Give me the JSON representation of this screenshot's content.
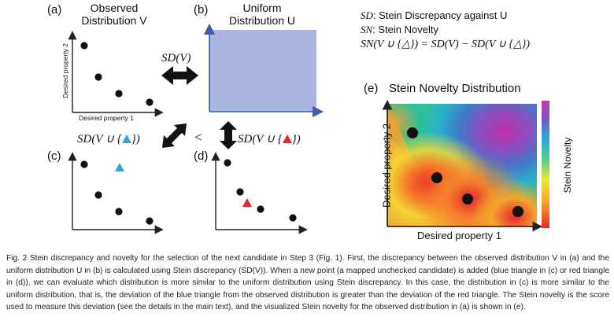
{
  "panels": {
    "a": {
      "letter": "(a)",
      "title_line1": "Observed",
      "title_line2": "Distribution V",
      "xlabel": "Desired property 1",
      "ylabel": "Desired property 2"
    },
    "b": {
      "letter": "(b)",
      "title_line1": "Uniform",
      "title_line2": "Distribution U"
    },
    "c": {
      "letter": "(c)"
    },
    "d": {
      "letter": "(d)"
    },
    "e": {
      "letter": "(e)",
      "title": "Stein Novelty Distribution",
      "xlabel": "Desired property 1",
      "ylabel": "Desired property 2",
      "colorbar_label": "Stein Novelty"
    }
  },
  "formulas": {
    "sd_v": "SD(V)",
    "sd_blue": "SD(V ∪ {",
    "sd_red": "SD(V ∪ {",
    "close_brace": "})",
    "less_than": "<"
  },
  "legend": {
    "line1_sym": "SD",
    "line1_text": ": Stein Discrepancy against U",
    "line2_sym": "SN",
    "line2_text": ": Stein Novelty",
    "line3": "SN(V ∪ {△}) = SD(V) − SD(V ∪ {△})"
  },
  "colors": {
    "uniform_fill": "#a9b5de",
    "blue_triangle": "#29a9e0",
    "red_triangle": "#e8262b"
  },
  "caption": "Fig. 2   Stein discrepancy and novelty for the selection of the next candidate in Step 3 (Fig. 1). First, the discrepancy between the observed distribution V in (a) and the uniform distribution U in (b) is calculated using Stein discrepancy (SD(V)). When a new point (a mapped unchecked candidate) is added (blue triangle in (c) or red triangle in (d)), we can evaluate which distribution is more similar to the uniform distribution using Stein discrepancy. In this case, the distribution in (c) is more similar to the uniform distribution, that is, the deviation of the blue triangle from the observed distribution is greater than the deviation of the red triangle. The Stein novelty is the score used to measure this deviation (see the details in the main text), and the visualized Stein novelty for the observed distribution in (a) is shown in (e)."
}
